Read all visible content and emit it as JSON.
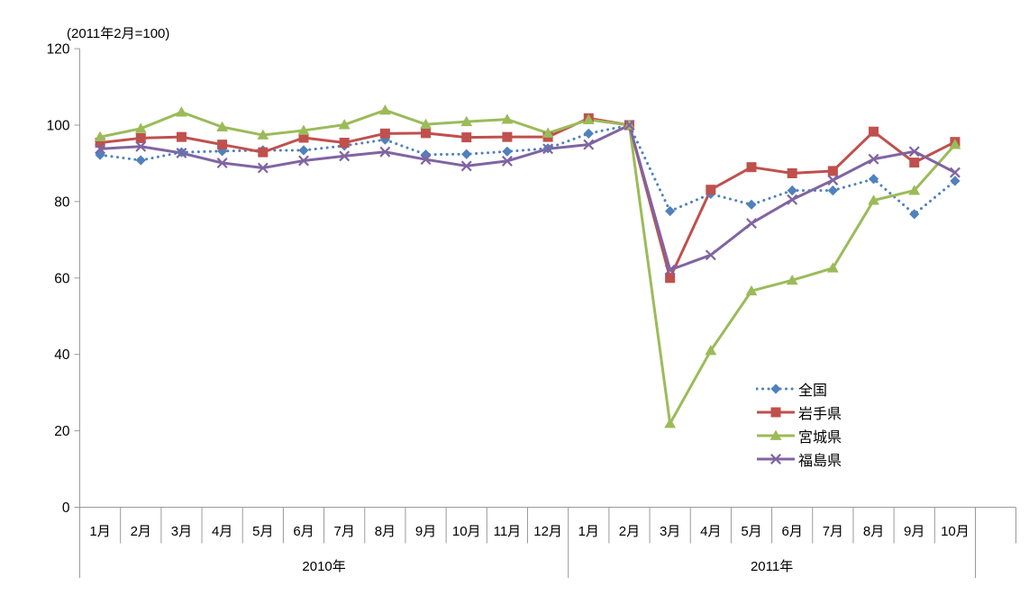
{
  "chart_data": {
    "type": "line",
    "title": "(2011年2月=100)",
    "ylim": [
      0,
      120
    ],
    "yticks": [
      0,
      20,
      40,
      60,
      80,
      100,
      120
    ],
    "grid": false,
    "legend_position": "inside-right-middle",
    "x_groups": [
      {
        "label": "2010年",
        "months": [
          "1月",
          "2月",
          "3月",
          "4月",
          "5月",
          "6月",
          "7月",
          "8月",
          "9月",
          "10月",
          "11月",
          "12月"
        ]
      },
      {
        "label": "2011年",
        "months": [
          "1月",
          "2月",
          "3月",
          "4月",
          "5月",
          "6月",
          "7月",
          "8月",
          "9月",
          "10月"
        ]
      }
    ],
    "series": [
      {
        "id": "zenkoku",
        "name": "全国",
        "color": "#4F81BD",
        "marker": "diamond",
        "line": "dotted",
        "values": [
          92.2,
          90.8,
          92.9,
          93.2,
          93.4,
          93.4,
          94.6,
          96.2,
          92.3,
          92.4,
          93.1,
          93.9,
          97.8,
          100.0,
          77.5,
          82.0,
          79.2,
          82.9,
          82.9,
          85.9,
          76.7,
          85.4
        ]
      },
      {
        "id": "iwate",
        "name": "岩手県",
        "color": "#C0504D",
        "marker": "square",
        "line": "solid",
        "values": [
          95.4,
          96.6,
          96.9,
          94.9,
          92.9,
          96.7,
          95.4,
          97.8,
          97.9,
          96.8,
          96.9,
          96.9,
          101.8,
          100.0,
          60.0,
          83.1,
          89.0,
          87.4,
          88.0,
          98.3,
          90.2,
          95.6
        ]
      },
      {
        "id": "miyagi",
        "name": "宮城県",
        "color": "#9BBB59",
        "marker": "triangle",
        "line": "solid",
        "values": [
          96.9,
          99.1,
          103.4,
          99.5,
          97.4,
          98.6,
          100.1,
          103.9,
          100.2,
          100.9,
          101.5,
          97.9,
          101.4,
          100.0,
          21.9,
          41.0,
          56.6,
          59.4,
          62.6,
          80.3,
          82.9,
          94.9
        ]
      },
      {
        "id": "fukushima",
        "name": "福島県",
        "color": "#8064A2",
        "marker": "x",
        "line": "solid",
        "values": [
          93.8,
          94.4,
          92.7,
          90.1,
          88.8,
          90.7,
          91.9,
          93.0,
          91.0,
          89.3,
          90.6,
          93.8,
          94.9,
          100.0,
          62.1,
          66.0,
          74.3,
          80.5,
          85.6,
          91.1,
          93.1,
          87.6
        ]
      }
    ]
  }
}
